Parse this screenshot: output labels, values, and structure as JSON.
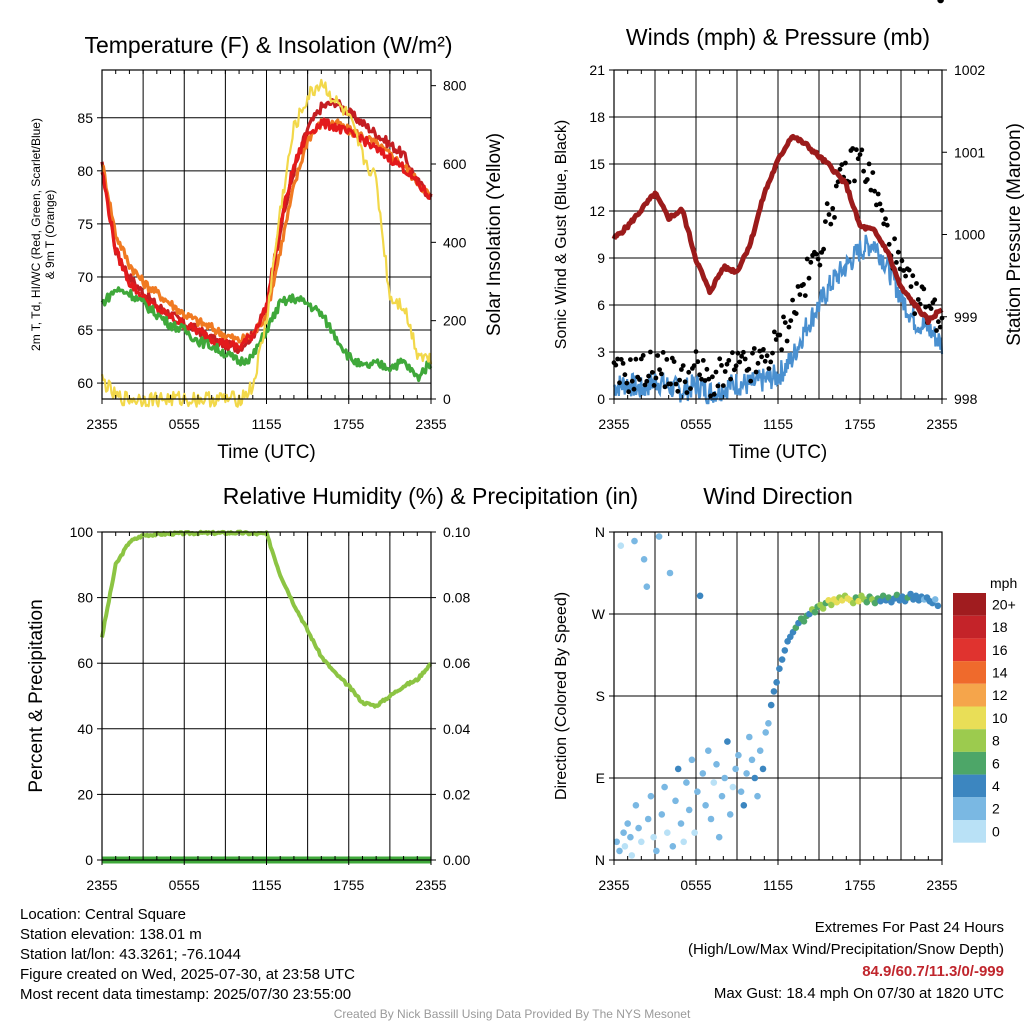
{
  "chart_data": [
    {
      "type": "line",
      "title": "Temperature (F) & Insolation (W/m²)",
      "xlabel": "Time (UTC)",
      "ylabel_lines": [
        "2m T, Td, HI/WC (Red, Green, Scarlet/Blue)",
        "& 9m T (Orange)"
      ],
      "y2label": "Solar Insolation (Yellow)",
      "x_ticks": [
        "2355",
        "0555",
        "1155",
        "1755",
        "2355"
      ],
      "ylim": [
        58.5,
        89.5
      ],
      "y_ticks": [
        60,
        65,
        70,
        75,
        80,
        85
      ],
      "y2lim": [
        0,
        840
      ],
      "y2_ticks": [
        0,
        200,
        400,
        600,
        800
      ],
      "x_hours": [
        0,
        1,
        2,
        3,
        4,
        5,
        6,
        7,
        8,
        9,
        10,
        11,
        12,
        13,
        14,
        15,
        16,
        17,
        18,
        19,
        20,
        21,
        22,
        23,
        24
      ],
      "series": [
        {
          "color": "#c41e22",
          "axis": "left",
          "values": [
            80.5,
            72.5,
            70.0,
            68.5,
            67.3,
            66.5,
            65.6,
            65.0,
            64.2,
            63.6,
            63.3,
            64.5,
            67.0,
            74.5,
            80.0,
            84.0,
            86.0,
            86.5,
            85.5,
            84.5,
            83.5,
            82.5,
            81.5,
            79.0,
            77.5
          ]
        },
        {
          "color": "#f07a22",
          "axis": "left",
          "values": [
            80.8,
            74.0,
            71.2,
            69.5,
            68.5,
            67.5,
            66.5,
            65.8,
            65.2,
            64.5,
            64.0,
            64.5,
            66.5,
            72.5,
            78.5,
            83.0,
            84.5,
            84.5,
            83.8,
            83.3,
            82.5,
            81.5,
            80.5,
            79.0,
            77.5
          ]
        },
        {
          "color": "#e31a1c",
          "axis": "left",
          "values": [
            80.0,
            72.5,
            69.5,
            68.0,
            67.0,
            66.2,
            65.5,
            64.9,
            64.2,
            63.7,
            63.4,
            64.6,
            67.2,
            75.0,
            80.5,
            83.5,
            84.5,
            84.2,
            83.5,
            83.0,
            82.0,
            81.2,
            80.3,
            78.8,
            77.5
          ]
        },
        {
          "color": "#3fa83a",
          "axis": "left",
          "values": [
            67.5,
            68.8,
            68.5,
            67.5,
            66.5,
            65.5,
            65.0,
            64.0,
            63.5,
            62.8,
            62.0,
            62.5,
            65.0,
            67.5,
            68.0,
            67.5,
            66.5,
            64.5,
            62.5,
            61.5,
            61.8,
            61.5,
            62.0,
            60.5,
            62.0
          ]
        },
        {
          "color": "#f2d84a",
          "axis": "right",
          "values": [
            50,
            5,
            0,
            0,
            0,
            0,
            0,
            0,
            0,
            0,
            0,
            30,
            200,
            480,
            690,
            770,
            810,
            760,
            720,
            620,
            560,
            260,
            240,
            120,
            100
          ]
        }
      ]
    },
    {
      "type": "scatter",
      "title": "Winds (mph) & Pressure (mb)",
      "xlabel": "Time (UTC)",
      "ylabel": "Sonic Wind & Gust (Blue, Black)",
      "y2label": "Station Pressure (Maroon)",
      "x_ticks": [
        "2355",
        "0555",
        "1155",
        "1755",
        "2355"
      ],
      "ylim": [
        0,
        21
      ],
      "y_ticks": [
        0,
        3,
        6,
        9,
        12,
        15,
        18,
        21
      ],
      "y2lim": [
        998,
        1002
      ],
      "y2_ticks": [
        998,
        999,
        1000,
        1001,
        1002
      ],
      "x_hours": [
        0,
        1,
        2,
        3,
        4,
        5,
        6,
        7,
        8,
        9,
        10,
        11,
        12,
        13,
        14,
        15,
        16,
        17,
        18,
        19,
        20,
        21,
        22,
        23,
        24
      ],
      "series": [
        {
          "color": "#4a90d0",
          "axis": "left",
          "kind": "line",
          "values": [
            0.8,
            1.0,
            0.6,
            1.2,
            0.8,
            0.5,
            0.9,
            0.4,
            0.7,
            1.0,
            0.9,
            1.2,
            1.5,
            2.5,
            4.5,
            6.0,
            7.5,
            8.5,
            9.5,
            10.0,
            8.5,
            6.5,
            5.0,
            4.5,
            3.5
          ]
        },
        {
          "color": "#000000",
          "axis": "left",
          "kind": "points",
          "values": [
            1.5,
            1.5,
            1.8,
            2.0,
            1.8,
            1.2,
            2.0,
            1.0,
            1.5,
            2.0,
            2.0,
            2.5,
            3.5,
            5.5,
            7.5,
            9.5,
            12.5,
            14.5,
            15.5,
            13.5,
            10.5,
            8.0,
            6.5,
            6.0,
            5.0
          ]
        },
        {
          "color": "#9b1b1b",
          "axis": "right",
          "kind": "line",
          "values": [
            999.95,
            1000.1,
            1000.3,
            1000.5,
            1000.2,
            1000.3,
            999.7,
            999.3,
            999.6,
            999.55,
            999.9,
            1000.5,
            1000.9,
            1001.2,
            1001.1,
            1000.95,
            1000.8,
            1000.6,
            1000.1,
            1000.05,
            999.8,
            999.35,
            999.15,
            998.95,
            999.1
          ]
        }
      ]
    },
    {
      "type": "line",
      "title": "Relative Humidity (%) & Precipitation (in)",
      "ylabel": "Percent & Precipitation",
      "x_ticks": [
        "2355",
        "0555",
        "1155",
        "1755",
        "2355"
      ],
      "ylim": [
        0,
        100
      ],
      "y_ticks": [
        0,
        20,
        40,
        60,
        80,
        100
      ],
      "y2lim": [
        0,
        0.1
      ],
      "y2_ticks": [
        "0.00",
        "0.02",
        "0.04",
        "0.06",
        "0.08",
        "0.10"
      ],
      "x_hours": [
        0,
        1,
        2,
        3,
        4,
        5,
        6,
        7,
        8,
        9,
        10,
        11,
        12,
        13,
        14,
        15,
        16,
        17,
        18,
        19,
        20,
        21,
        22,
        23,
        24
      ],
      "series": [
        {
          "color": "#8cc443",
          "axis": "left",
          "values": [
            68,
            90,
            97,
            99,
            99.3,
            99.5,
            99.6,
            99.7,
            99.7,
            99.7,
            99.8,
            99.5,
            99.5,
            87,
            78,
            70,
            62,
            57,
            53,
            48,
            47,
            50,
            53,
            55,
            60
          ]
        },
        {
          "color": "#3fa83a",
          "axis": "right",
          "values": [
            0,
            0,
            0,
            0,
            0,
            0,
            0,
            0,
            0,
            0,
            0,
            0,
            0,
            0,
            0,
            0,
            0,
            0,
            0,
            0,
            0,
            0,
            0,
            0,
            0
          ]
        }
      ]
    },
    {
      "type": "scatter",
      "title": "Wind Direction",
      "ylabel": "Direction (Colored By Speed)",
      "x_ticks": [
        "2355",
        "0555",
        "1155",
        "1755",
        "2355"
      ],
      "y_ticks": [
        "N",
        "E",
        "S",
        "W",
        "N"
      ],
      "ylim": [
        0,
        360
      ],
      "legend": {
        "title": "mph",
        "placement": "right",
        "labels": [
          "20+",
          "18",
          "16",
          "14",
          "12",
          "10",
          "8",
          "6",
          "4",
          "2",
          "0"
        ],
        "colors": [
          "#a01c1f",
          "#c42329",
          "#e0332f",
          "#ef6a2c",
          "#f5a54b",
          "#e9de57",
          "#9ccb4e",
          "#4da668",
          "#3c86c0",
          "#7ab8e3",
          "#b9e1f6"
        ]
      },
      "points_hours": [
        0.2,
        0.4,
        0.5,
        0.7,
        0.8,
        1.0,
        1.2,
        1.3,
        1.5,
        1.6,
        1.8,
        2.0,
        2.2,
        2.4,
        2.5,
        2.7,
        2.9,
        3.1,
        3.3,
        3.5,
        3.7,
        3.9,
        4.1,
        4.3,
        4.5,
        4.7,
        4.9,
        5.1,
        5.3,
        5.5,
        5.7,
        5.9,
        6.1,
        6.3,
        6.5,
        6.7,
        6.9,
        7.1,
        7.3,
        7.5,
        7.7,
        7.9,
        8.1,
        8.3,
        8.5,
        8.7,
        8.9,
        9.1,
        9.3,
        9.5,
        9.7,
        9.9,
        10.1,
        10.3,
        10.5,
        10.7,
        10.9,
        11.1,
        11.3,
        11.5,
        11.7,
        11.9,
        12.1,
        12.3,
        12.5,
        12.7,
        12.9,
        13.1,
        13.3,
        13.5,
        13.7,
        13.9,
        14.1,
        14.3,
        14.5,
        14.7,
        14.9,
        15.1,
        15.3,
        15.5,
        15.7,
        15.9,
        16.1,
        16.3,
        16.5,
        16.7,
        16.9,
        17.1,
        17.3,
        17.5,
        17.7,
        17.9,
        18.1,
        18.3,
        18.5,
        18.7,
        18.9,
        19.1,
        19.3,
        19.5,
        19.7,
        19.9,
        20.1,
        20.3,
        20.5,
        20.7,
        20.9,
        21.1,
        21.3,
        21.5,
        21.7,
        21.9,
        22.1,
        22.3,
        22.5,
        22.7,
        22.9,
        23.1,
        23.3,
        23.5,
        23.7,
        23.9
      ],
      "points_dir": [
        20,
        10,
        345,
        30,
        15,
        40,
        25,
        5,
        350,
        60,
        35,
        20,
        330,
        300,
        45,
        70,
        25,
        10,
        355,
        50,
        80,
        30,
        315,
        15,
        65,
        100,
        40,
        20,
        85,
        55,
        110,
        30,
        75,
        290,
        95,
        60,
        120,
        45,
        85,
        105,
        25,
        70,
        90,
        130,
        50,
        80,
        100,
        115,
        75,
        60,
        95,
        135,
        110,
        90,
        70,
        120,
        100,
        140,
        150,
        170,
        185,
        195,
        210,
        220,
        230,
        240,
        245,
        250,
        255,
        260,
        265,
        262,
        268,
        270,
        275,
        272,
        278,
        280,
        276,
        282,
        285,
        280,
        286,
        283,
        288,
        285,
        290,
        287,
        285,
        282,
        288,
        284,
        290,
        286,
        283,
        289,
        286,
        282,
        287,
        284,
        290,
        285,
        288,
        283,
        287,
        291,
        285,
        289,
        284,
        288,
        292,
        286,
        290,
        285,
        289,
        286,
        288,
        284,
        282,
        286,
        279
      ],
      "points_speed": [
        1,
        1,
        0,
        1,
        0,
        1,
        1,
        0,
        1,
        2,
        1,
        0,
        1,
        2,
        1,
        1,
        0,
        1,
        2,
        1,
        1,
        0,
        1,
        2,
        1,
        3,
        1,
        0,
        2,
        1,
        1,
        0,
        2,
        3,
        1,
        1,
        2,
        1,
        0,
        2,
        1,
        1,
        2,
        3,
        1,
        0,
        2,
        1,
        2,
        3,
        1,
        2,
        1,
        3,
        2,
        2,
        3,
        2,
        2,
        3,
        3,
        4,
        3,
        3,
        4,
        3,
        4,
        4,
        5,
        4,
        5,
        6,
        5,
        4,
        7,
        5,
        6,
        8,
        7,
        6,
        9,
        8,
        10,
        9,
        8,
        10,
        7,
        9,
        10,
        8,
        6,
        9,
        7,
        8,
        6,
        5,
        7,
        5,
        6,
        4,
        5,
        4,
        5,
        3,
        4,
        5,
        4,
        3,
        4,
        5,
        3,
        4,
        3,
        4,
        3,
        2,
        3,
        4,
        3,
        2,
        3
      ]
    }
  ],
  "info": {
    "location": "Location: Central Square",
    "elevation": "Station elevation: 138.01 m",
    "latlon": "Station lat/lon: 43.3261; -76.1044",
    "created": "Figure created on Wed, 2025-07-30, at 23:58 UTC",
    "recent": "Most recent data timestamp: 2025/07/30 23:55:00"
  },
  "extremes": {
    "heading": "Extremes For Past 24 Hours",
    "sub": "(High/Low/Max Wind/Precipitation/Snow Depth)",
    "values": "84.9/60.7/11.3/0/-999",
    "gust": "Max Gust: 18.4 mph On 07/30 at 1820 UTC"
  },
  "credit": "Created By Nick Bassill Using Data Provided By The NYS Mesonet"
}
